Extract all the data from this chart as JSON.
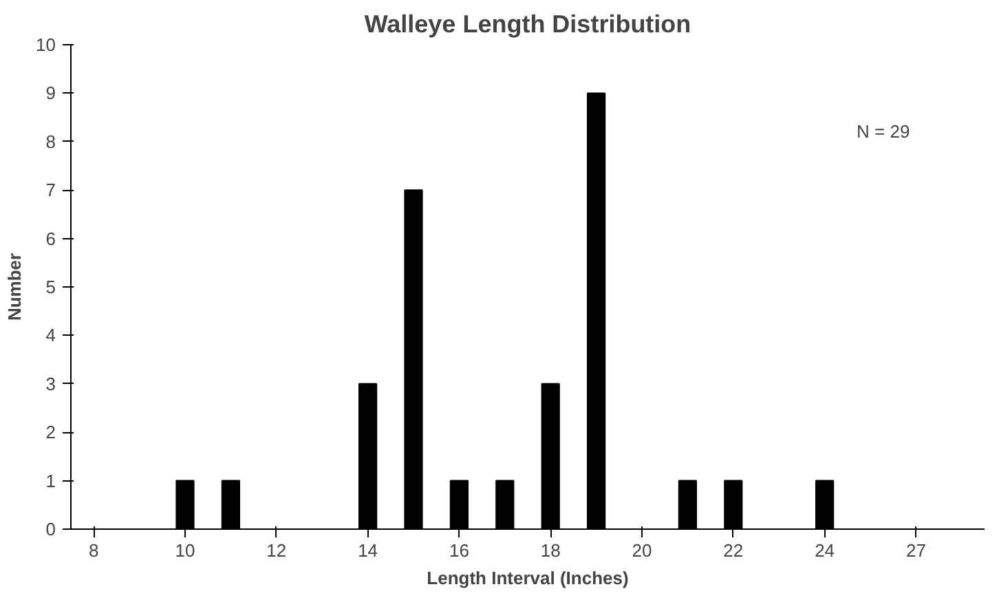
{
  "chart_data": {
    "type": "bar",
    "title": "Walleye Length Distribution",
    "xlabel": "Length Interval (Inches)",
    "ylabel": "Number",
    "categories": [
      "8",
      null,
      "10",
      null,
      "12",
      null,
      "14",
      null,
      "16",
      null,
      "18",
      null,
      "20",
      null,
      "22",
      null,
      "24",
      null,
      "27",
      null
    ],
    "values": [
      0,
      0,
      1,
      1,
      0,
      0,
      3,
      7,
      1,
      1,
      3,
      9,
      0,
      1,
      1,
      0,
      1,
      0,
      0,
      0
    ],
    "color": "#000000",
    "ylim": [
      0,
      10
    ],
    "yticks": [
      0,
      1,
      2,
      3,
      4,
      5,
      6,
      7,
      8,
      9,
      10
    ],
    "grid": false,
    "annotations": [
      "N = 29"
    ]
  }
}
